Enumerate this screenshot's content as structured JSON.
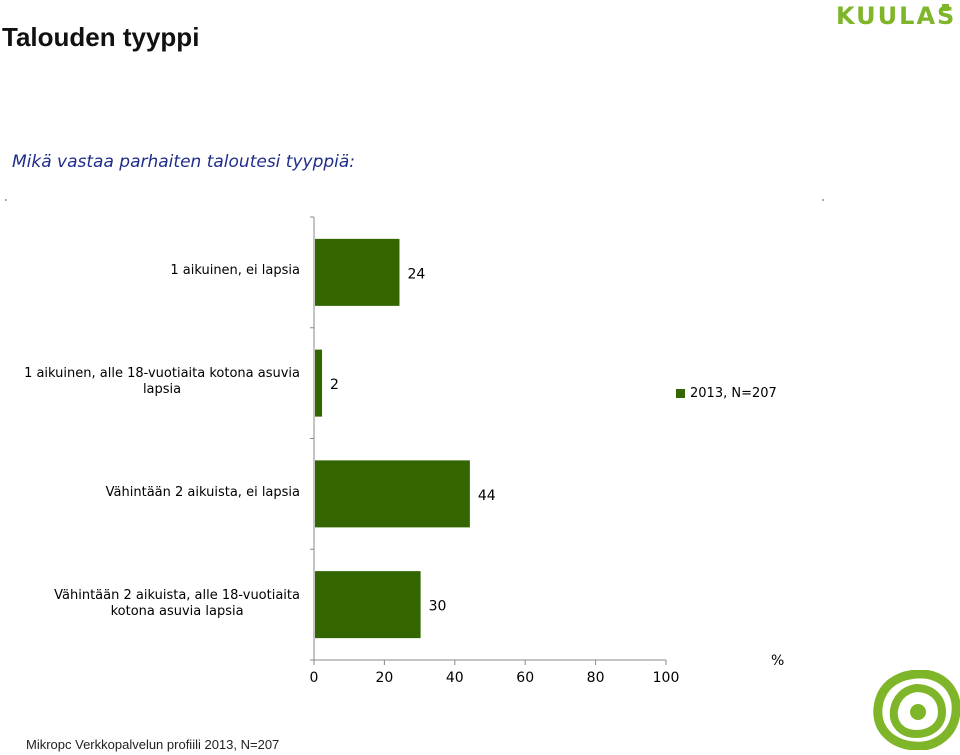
{
  "page": {
    "title": "Talouden tyyppi",
    "logo_text": "KUULAS",
    "logo_color": "#7fb528",
    "question": "Mikä vastaa parhaiten taloutesi tyyppiä:",
    "footer": "Mikropc Verkkopalvelun profiili 2013, N=207"
  },
  "chart_data": {
    "type": "bar",
    "orientation": "horizontal",
    "title": "",
    "categories": [
      "1 aikuinen, ei lapsia",
      "1 aikuinen, alle 18-vuotiaita kotona asuvia lapsia",
      "Vähintään 2 aikuista, ei lapsia",
      "Vähintään 2 aikuista, alle 18-vuotiaita kotona asuvia lapsia"
    ],
    "category_lines": [
      [
        "1 aikuinen, ei lapsia"
      ],
      [
        "1 aikuinen, alle 18-vuotiaita kotona asuvia",
        "lapsia"
      ],
      [
        "Vähintään 2 aikuista, ei lapsia"
      ],
      [
        "Vähintään 2 aikuista, alle 18-vuotiaita",
        "kotona asuvia lapsia"
      ]
    ],
    "series": [
      {
        "name": "2013, N=207",
        "color": "#336600",
        "values": [
          24,
          2,
          44,
          30
        ]
      }
    ],
    "xlim": [
      0,
      100
    ],
    "xticks": [
      "0",
      "20",
      "40",
      "60",
      "80",
      "100"
    ],
    "xlabel": "%",
    "grid": false,
    "legend_position": "right"
  }
}
